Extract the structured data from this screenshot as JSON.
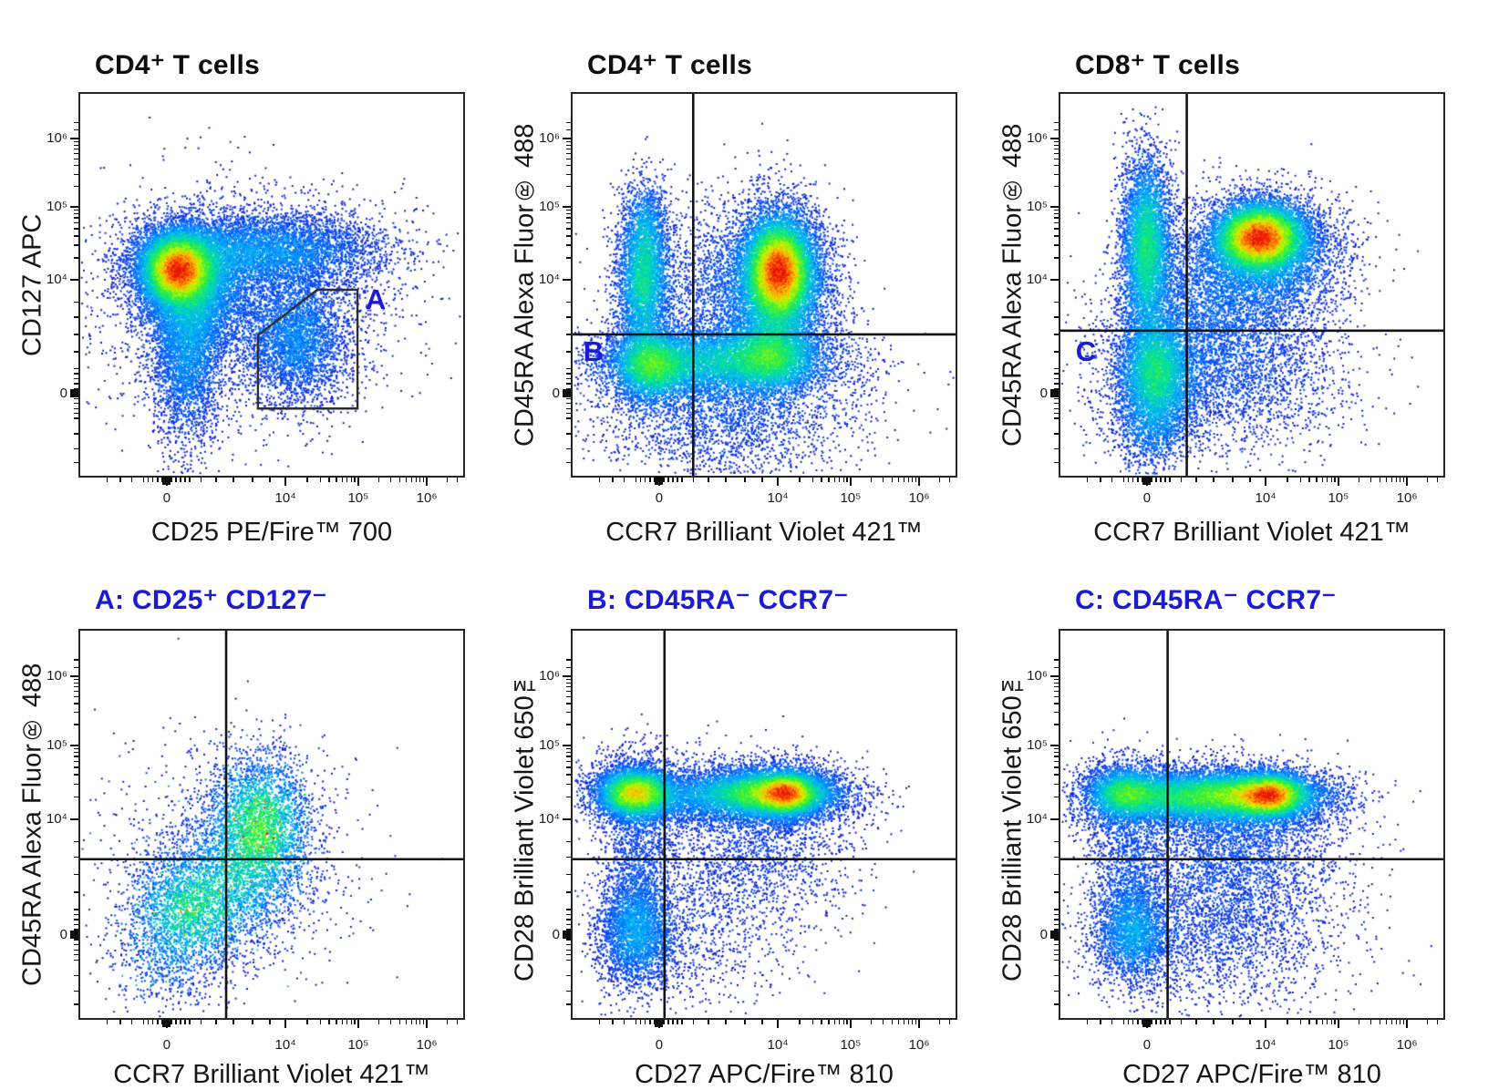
{
  "figure": {
    "background": "#ffffff",
    "description": "Flow cytometry pseudocolor density plots: T cell subset gating (Treg and memory/naive phenotyping)"
  },
  "palette": {
    "gate_blue": "#1b1bd1",
    "title_black": "#0f0f0f",
    "frame": "#262626",
    "tick": "#0e0e0e",
    "colormap_stops": [
      [
        0.0,
        "#1010be"
      ],
      [
        0.18,
        "#0a50ff"
      ],
      [
        0.35,
        "#00aaff"
      ],
      [
        0.5,
        "#00e1a0"
      ],
      [
        0.62,
        "#3cf032"
      ],
      [
        0.74,
        "#c8fa00"
      ],
      [
        0.84,
        "#ffb400"
      ],
      [
        0.92,
        "#ff5a00"
      ],
      [
        1.0,
        "#e61408"
      ]
    ]
  },
  "scale_ticks": {
    "x_major": [
      {
        "label": "0",
        "f": 0.226
      },
      {
        "label": "10⁴",
        "f": 0.536
      },
      {
        "label": "10⁵",
        "f": 0.726
      },
      {
        "label": "10⁶",
        "f": 0.905
      }
    ],
    "y_major": [
      {
        "label": "10⁶",
        "f": 0.117
      },
      {
        "label": "10⁵",
        "f": 0.296
      },
      {
        "label": "10⁴",
        "f": 0.487
      },
      {
        "label": "0",
        "f": 0.785
      }
    ],
    "x_zero_f": 0.226,
    "y_zero_f": 0.785,
    "x_minor": [
      0.07,
      0.105,
      0.135,
      0.166,
      0.178,
      0.19,
      0.202,
      0.214,
      0.238,
      0.25,
      0.262,
      0.274,
      0.286,
      0.315,
      0.355,
      0.4,
      0.45,
      0.495,
      0.593,
      0.627,
      0.65,
      0.669,
      0.684,
      0.697,
      0.708,
      0.717,
      0.78,
      0.811,
      0.834,
      0.851,
      0.865,
      0.877,
      0.887,
      0.896,
      0.959,
      0.984
    ],
    "y_minor": [
      0.075,
      0.095,
      0.126,
      0.135,
      0.145,
      0.157,
      0.171,
      0.188,
      0.211,
      0.242,
      0.305,
      0.314,
      0.325,
      0.338,
      0.353,
      0.372,
      0.396,
      0.43,
      0.545,
      0.585,
      0.63,
      0.675,
      0.72,
      0.733,
      0.746,
      0.759,
      0.772,
      0.798,
      0.811,
      0.824,
      0.837,
      0.85,
      0.89,
      0.93,
      0.965
    ]
  },
  "chart_data": [
    {
      "id": "cd4-cd25-vs-cd127",
      "type": "pseudocolor-scatter",
      "row": 0,
      "col": 0,
      "title": "CD4⁺ T cells",
      "title_color": "#0f0f0f",
      "xlabel": "CD25 PE/Fire™ 700",
      "ylabel": "CD127 APC",
      "axis_scale": "biexponential: 0, 10⁴, 10⁵, 10⁶",
      "gate": {
        "kind": "polygon",
        "label": "A",
        "label_fx": 0.745,
        "label_fy": 0.5,
        "points": [
          [
            0.464,
            0.824
          ],
          [
            0.464,
            0.632
          ],
          [
            0.619,
            0.513
          ],
          [
            0.724,
            0.513
          ],
          [
            0.724,
            0.824
          ]
        ]
      },
      "render": {
        "seed": 101,
        "heat": 1,
        "noise": 0.16,
        "gamma": 0.62,
        "spark": 0,
        "clusters": [
          {
            "cx": 0.255,
            "cy": 0.46,
            "sx": 0.05,
            "sy": 0.05,
            "n": 9000,
            "note": "main CD25− CD127+ core ≈ (0, 10⁴), red-hot"
          },
          {
            "cx": 0.3,
            "cy": 0.52,
            "sx": 0.075,
            "sy": 0.085,
            "n": 4000,
            "note": "halo"
          },
          {
            "cx": 0.47,
            "cy": 0.41,
            "sx": 0.165,
            "sy": 0.05,
            "n": 5000,
            "note": "CD25-intermediate arm toward 10⁴"
          },
          {
            "cx": 0.28,
            "cy": 0.68,
            "sx": 0.045,
            "sy": 0.12,
            "n": 3000,
            "note": "CD127-low tail"
          },
          {
            "cx": 0.565,
            "cy": 0.64,
            "sx": 0.07,
            "sy": 0.085,
            "n": 3000,
            "note": "CD25+ CD127− Tregs inside gate A ≈ (2×10⁴, <10³)"
          },
          {
            "cx": 0.42,
            "cy": 0.55,
            "sx": 0.2,
            "sy": 0.15,
            "n": 2600,
            "note": "sparse scatter"
          }
        ]
      }
    },
    {
      "id": "cd4-ccr7-vs-cd45ra",
      "type": "pseudocolor-scatter",
      "row": 0,
      "col": 1,
      "title": "CD4⁺ T cells",
      "title_color": "#0f0f0f",
      "xlabel": "CCR7 Brilliant Violet 421™",
      "ylabel": "CD45RA Alexa Fluor® 488",
      "axis_scale": "biexponential: 0, 10⁴, 10⁵, 10⁶",
      "gate": {
        "kind": "quadrant",
        "label": "B",
        "label_fx": 0.028,
        "label_fy": 0.638,
        "vx": 0.315,
        "hy": 0.63
      },
      "render": {
        "seed": 202,
        "heat": 1,
        "noise": 0.16,
        "gamma": 0.62,
        "spark": 0,
        "clusters": [
          {
            "cx": 0.54,
            "cy": 0.465,
            "sx": 0.045,
            "sy": 0.07,
            "n": 8500,
            "note": "naive CD45RA+ CCR7+ core ≈ (10⁴, 10⁴), red-hot"
          },
          {
            "cx": 0.53,
            "cy": 0.5,
            "sx": 0.08,
            "sy": 0.11,
            "n": 4200,
            "note": "halo"
          },
          {
            "cx": 0.185,
            "cy": 0.5,
            "sx": 0.035,
            "sy": 0.095,
            "n": 3200,
            "note": "CD45RA+ CCR7− column at CCR7≈0"
          },
          {
            "cx": 0.19,
            "cy": 0.35,
            "sx": 0.03,
            "sy": 0.07,
            "n": 900,
            "note": "column tail"
          },
          {
            "cx": 0.37,
            "cy": 0.7,
            "sx": 0.16,
            "sy": 0.045,
            "n": 5200,
            "note": "CD45RA− memory band (gate B region)"
          },
          {
            "cx": 0.205,
            "cy": 0.715,
            "sx": 0.05,
            "sy": 0.05,
            "n": 2600,
            "note": "band left bright ≈ (0, 0)"
          },
          {
            "cx": 0.52,
            "cy": 0.685,
            "sx": 0.06,
            "sy": 0.05,
            "n": 2600,
            "note": "band right bright ≈ (10⁴, 0)"
          },
          {
            "cx": 0.4,
            "cy": 0.82,
            "sx": 0.17,
            "sy": 0.1,
            "n": 2800,
            "note": "scatter below 0"
          },
          {
            "cx": 0.38,
            "cy": 0.52,
            "sx": 0.12,
            "sy": 0.12,
            "n": 1600,
            "note": "bridge"
          }
        ]
      }
    },
    {
      "id": "cd8-ccr7-vs-cd45ra",
      "type": "pseudocolor-scatter",
      "row": 0,
      "col": 2,
      "title": "CD8⁺ T cells",
      "title_color": "#0f0f0f",
      "xlabel": "CCR7 Brilliant Violet 421™",
      "ylabel": "CD45RA Alexa Fluor® 488",
      "axis_scale": "biexponential: 0, 10⁴, 10⁵, 10⁶",
      "gate": {
        "kind": "quadrant",
        "label": "C",
        "label_fx": 0.04,
        "label_fy": 0.638,
        "vx": 0.33,
        "hy": 0.62
      },
      "render": {
        "seed": 303,
        "heat": 1,
        "noise": 0.16,
        "gamma": 0.62,
        "spark": 0,
        "clusters": [
          {
            "cx": 0.225,
            "cy": 0.4,
            "sx": 0.033,
            "sy": 0.12,
            "n": 4800,
            "note": "CD45RA+ CCR7− column at CCR7≈0, cyan-green"
          },
          {
            "cx": 0.52,
            "cy": 0.375,
            "sx": 0.06,
            "sy": 0.045,
            "n": 8000,
            "note": "CD45RA+ CCR7+ core ≈ (10⁴, 2×10⁴), red-hot"
          },
          {
            "cx": 0.55,
            "cy": 0.43,
            "sx": 0.1,
            "sy": 0.085,
            "n": 3600,
            "note": "halo"
          },
          {
            "cx": 0.25,
            "cy": 0.73,
            "sx": 0.05,
            "sy": 0.075,
            "n": 4200,
            "note": "CD45RA− CCR7− blob ≈ (0, 0), green core (gate C region)"
          },
          {
            "cx": 0.42,
            "cy": 0.72,
            "sx": 0.16,
            "sy": 0.11,
            "n": 3200,
            "note": "scatter"
          },
          {
            "cx": 0.38,
            "cy": 0.52,
            "sx": 0.11,
            "sy": 0.1,
            "n": 2000,
            "note": "bridge"
          },
          {
            "cx": 0.24,
            "cy": 0.88,
            "sx": 0.05,
            "sy": 0.06,
            "n": 900,
            "note": "tail below 0"
          }
        ]
      }
    },
    {
      "id": "gateA-ccr7-vs-cd45ra",
      "type": "pseudocolor-scatter",
      "row": 1,
      "col": 0,
      "title": "A: CD25⁺ CD127⁻",
      "title_color": "#1b1bd1",
      "xlabel": "CCR7 Brilliant Violet 421™",
      "ylabel": "CD45RA Alexa Fluor® 488",
      "axis_scale": "biexponential: 0, 10⁴, 10⁵, 10⁶",
      "gate": {
        "kind": "quadrant",
        "vx": 0.381,
        "hy": 0.59
      },
      "render": {
        "seed": 404,
        "heat": 0.6,
        "noise": 0.26,
        "gamma": 0.8,
        "spark": 0.02,
        "clusters": [
          {
            "cx": 0.47,
            "cy": 0.49,
            "sx": 0.07,
            "sy": 0.095,
            "n": 2600,
            "note": "CD45RA int/+ CCR7+ cluster ≈ (5×10³, 5×10³), speckled green"
          },
          {
            "cx": 0.28,
            "cy": 0.73,
            "sx": 0.085,
            "sy": 0.08,
            "n": 2200,
            "note": "CD45RA− CCR7− cluster ≈ (0, 0)"
          },
          {
            "cx": 0.42,
            "cy": 0.63,
            "sx": 0.1,
            "sy": 0.09,
            "n": 1400,
            "note": "bridge across quadrant center"
          },
          {
            "cx": 0.37,
            "cy": 0.6,
            "sx": 0.17,
            "sy": 0.15,
            "n": 900,
            "note": "sparse scatter"
          },
          {
            "cx": 0.22,
            "cy": 0.88,
            "sx": 0.07,
            "sy": 0.05,
            "n": 300,
            "note": "tail below 0"
          }
        ]
      }
    },
    {
      "id": "gateB-cd27-vs-cd28",
      "type": "pseudocolor-scatter",
      "row": 1,
      "col": 1,
      "title": "B: CD45RA⁻ CCR7⁻",
      "title_color": "#1b1bd1",
      "xlabel": "CD27 APC/Fire™ 810",
      "ylabel": "CD28 Brilliant Violet 650™",
      "axis_scale": "biexponential: 0, 10⁴, 10⁵, 10⁶",
      "gate": {
        "kind": "quadrant",
        "vx": 0.24,
        "hy": 0.59
      },
      "render": {
        "seed": 505,
        "heat": 1,
        "noise": 0.16,
        "gamma": 0.62,
        "spark": 0,
        "clusters": [
          {
            "cx": 0.165,
            "cy": 0.42,
            "sx": 0.05,
            "sy": 0.032,
            "n": 4200,
            "note": "CD27− CD28+ band ≈ (0, 10⁴), yellow core"
          },
          {
            "cx": 0.165,
            "cy": 0.42,
            "sx": 0.075,
            "sy": 0.055,
            "n": 1500,
            "note": "halo"
          },
          {
            "cx": 0.51,
            "cy": 0.42,
            "sx": 0.095,
            "sy": 0.032,
            "n": 6500,
            "note": "CD27+ CD28+ band ≈ (10⁴–3×10⁴, 10⁴)"
          },
          {
            "cx": 0.56,
            "cy": 0.42,
            "sx": 0.04,
            "sy": 0.028,
            "n": 2500,
            "note": "band hot core, red ≈ (2×10⁴, 10⁴)"
          },
          {
            "cx": 0.5,
            "cy": 0.44,
            "sx": 0.13,
            "sy": 0.06,
            "n": 1800,
            "note": "halo"
          },
          {
            "cx": 0.31,
            "cy": 0.43,
            "sx": 0.07,
            "sy": 0.035,
            "n": 900,
            "note": "bridge"
          },
          {
            "cx": 0.165,
            "cy": 0.78,
            "sx": 0.05,
            "sy": 0.07,
            "n": 2600,
            "note": "CD27− CD28− blob ≈ (0, 0), cyan-green"
          },
          {
            "cx": 0.17,
            "cy": 0.6,
            "sx": 0.05,
            "sy": 0.11,
            "n": 1100,
            "note": "left column bridge"
          },
          {
            "cx": 0.47,
            "cy": 0.6,
            "sx": 0.13,
            "sy": 0.09,
            "n": 1300,
            "note": "scatter below band"
          },
          {
            "cx": 0.3,
            "cy": 0.8,
            "sx": 0.12,
            "sy": 0.09,
            "n": 700,
            "note": "sparse low scatter"
          }
        ]
      }
    },
    {
      "id": "gateC-cd27-vs-cd28",
      "type": "pseudocolor-scatter",
      "row": 1,
      "col": 2,
      "title": "C: CD45RA⁻ CCR7⁻",
      "title_color": "#1b1bd1",
      "xlabel": "CD27 APC/Fire™ 810",
      "ylabel": "CD28 Brilliant Violet 650™",
      "axis_scale": "biexponential: 0, 10⁴, 10⁵, 10⁶",
      "gate": {
        "kind": "quadrant",
        "vx": 0.28,
        "hy": 0.59
      },
      "render": {
        "seed": 606,
        "heat": 1,
        "noise": 0.16,
        "gamma": 0.62,
        "spark": 0,
        "clusters": [
          {
            "cx": 0.17,
            "cy": 0.42,
            "sx": 0.05,
            "sy": 0.034,
            "n": 2400,
            "note": "CD27− CD28+ band ≈ (0, 10⁴), green"
          },
          {
            "cx": 0.17,
            "cy": 0.43,
            "sx": 0.08,
            "sy": 0.055,
            "n": 1300,
            "note": "halo"
          },
          {
            "cx": 0.47,
            "cy": 0.425,
            "sx": 0.115,
            "sy": 0.033,
            "n": 7000,
            "note": "CD27+ CD28+ band ≈ (10⁴–3×10⁴, 10⁴)"
          },
          {
            "cx": 0.55,
            "cy": 0.425,
            "sx": 0.045,
            "sy": 0.028,
            "n": 2800,
            "note": "band hot core, red ≈ (2×10⁴, 10⁴)"
          },
          {
            "cx": 0.46,
            "cy": 0.46,
            "sx": 0.14,
            "sy": 0.06,
            "n": 2000,
            "note": "halo"
          },
          {
            "cx": 0.3,
            "cy": 0.43,
            "sx": 0.07,
            "sy": 0.033,
            "n": 1500,
            "note": "bridge"
          },
          {
            "cx": 0.19,
            "cy": 0.78,
            "sx": 0.05,
            "sy": 0.065,
            "n": 2100,
            "note": "CD27− CD28− blob ≈ (0, 0), cyan"
          },
          {
            "cx": 0.45,
            "cy": 0.6,
            "sx": 0.14,
            "sy": 0.08,
            "n": 1800,
            "note": "scatter below band"
          },
          {
            "cx": 0.4,
            "cy": 0.78,
            "sx": 0.17,
            "sy": 0.1,
            "n": 2200,
            "note": "wide low scatter"
          },
          {
            "cx": 0.17,
            "cy": 0.6,
            "sx": 0.05,
            "sy": 0.09,
            "n": 800,
            "note": "left bridge"
          }
        ]
      }
    }
  ]
}
